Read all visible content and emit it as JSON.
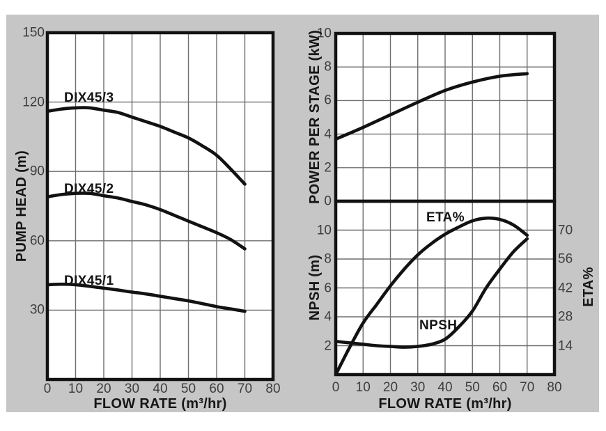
{
  "figure": {
    "description": "Pump performance curves figure for DIX45 series pumps",
    "panel_background": "#c5c6c5",
    "plot_background": "#ffffff"
  },
  "colors": {
    "curve": "#121212",
    "border": "#121212",
    "grid": "#6e6e6e",
    "tick_text": "#3d3d3d",
    "label_text": "#141414"
  },
  "chart_data": [
    {
      "id": "pump_head",
      "type": "line",
      "title": "",
      "xlabel": "FLOW RATE (m³/hr)",
      "ylabel": "PUMP HEAD (m)",
      "xlim": [
        0,
        80
      ],
      "ylim": [
        0,
        150
      ],
      "x_ticks": [
        0,
        10,
        20,
        30,
        40,
        50,
        60,
        70,
        80
      ],
      "y_ticks": [
        150,
        120,
        90,
        60,
        30
      ],
      "x_gridlines": [
        10,
        20,
        30,
        40,
        50,
        60,
        70
      ],
      "y_gridlines": [
        120,
        90,
        60,
        30
      ],
      "grid": true,
      "legend": "labels on curves",
      "series": [
        {
          "name": "DIX45/3",
          "x": [
            0,
            5,
            10,
            15,
            20,
            25,
            30,
            35,
            40,
            45,
            50,
            55,
            60,
            65,
            70
          ],
          "y": [
            116,
            117,
            117.5,
            117.5,
            116.5,
            115.5,
            113.5,
            111.5,
            109.5,
            107,
            104.5,
            101,
            97,
            91,
            84.5
          ]
        },
        {
          "name": "DIX45/2",
          "x": [
            0,
            5,
            10,
            15,
            20,
            25,
            30,
            35,
            40,
            45,
            50,
            55,
            60,
            65,
            70
          ],
          "y": [
            79,
            80,
            80.5,
            80.5,
            79.5,
            78.5,
            77,
            75.5,
            73.5,
            71,
            68.5,
            66,
            63.5,
            60.5,
            56.5
          ]
        },
        {
          "name": "DIX45/1",
          "x": [
            0,
            5,
            10,
            15,
            20,
            25,
            30,
            35,
            40,
            45,
            50,
            55,
            60,
            65,
            70
          ],
          "y": [
            41,
            41.2,
            41,
            40.3,
            39.5,
            38.7,
            37.8,
            37,
            36,
            35,
            34,
            32.8,
            31.5,
            30.5,
            29.5
          ]
        }
      ]
    },
    {
      "id": "power_per_stage",
      "type": "line",
      "title": "",
      "xlabel": "",
      "ylabel": "POWER PER STAGE (kW)",
      "xlim": [
        0,
        80
      ],
      "ylim": [
        0,
        10
      ],
      "x_ticks": [],
      "y_ticks": [
        10,
        8,
        6,
        4,
        2,
        0
      ],
      "x_gridlines": [
        10,
        20,
        30,
        40,
        50,
        60,
        70
      ],
      "y_gridlines": [
        8,
        6,
        4,
        2
      ],
      "grid": true,
      "series": [
        {
          "name": "POWER",
          "x": [
            0,
            10,
            20,
            30,
            40,
            50,
            60,
            70
          ],
          "y": [
            3.7,
            4.4,
            5.15,
            5.9,
            6.6,
            7.1,
            7.45,
            7.6
          ]
        }
      ]
    },
    {
      "id": "npsh_eta",
      "type": "line",
      "title": "",
      "xlabel": "FLOW RATE (m³/hr)",
      "ylabel": "NPSH (m)",
      "y2label": "ETA%",
      "xlim": [
        0,
        80
      ],
      "ylim": [
        0,
        12
      ],
      "y2lim": [
        0,
        84
      ],
      "x_ticks": [
        0,
        10,
        20,
        30,
        40,
        50,
        60,
        70,
        80
      ],
      "y_ticks": [
        10,
        8,
        6,
        4,
        2
      ],
      "y2_ticks": [
        70,
        56,
        42,
        28,
        14
      ],
      "x_gridlines": [
        10,
        20,
        30,
        40,
        50,
        60,
        70
      ],
      "y_gridlines": [
        10,
        8,
        6,
        4,
        2
      ],
      "grid": true,
      "series": [
        {
          "name": "ETA%",
          "axis": "y2",
          "x": [
            0,
            5,
            10,
            15,
            20,
            25,
            30,
            35,
            40,
            45,
            50,
            55,
            60,
            65,
            70
          ],
          "y": [
            0,
            13,
            25,
            34,
            43,
            51,
            58,
            63.5,
            68,
            71.5,
            74.5,
            75.8,
            75.2,
            72.5,
            67.5
          ]
        },
        {
          "name": "NPSH",
          "axis": "y",
          "x": [
            0,
            5,
            10,
            15,
            20,
            25,
            30,
            35,
            40,
            45,
            50,
            55,
            60,
            65,
            70
          ],
          "y": [
            2.3,
            2.2,
            2.1,
            2.0,
            1.95,
            1.9,
            1.95,
            2.1,
            2.45,
            3.3,
            4.4,
            6.0,
            7.3,
            8.5,
            9.4
          ]
        }
      ]
    }
  ]
}
